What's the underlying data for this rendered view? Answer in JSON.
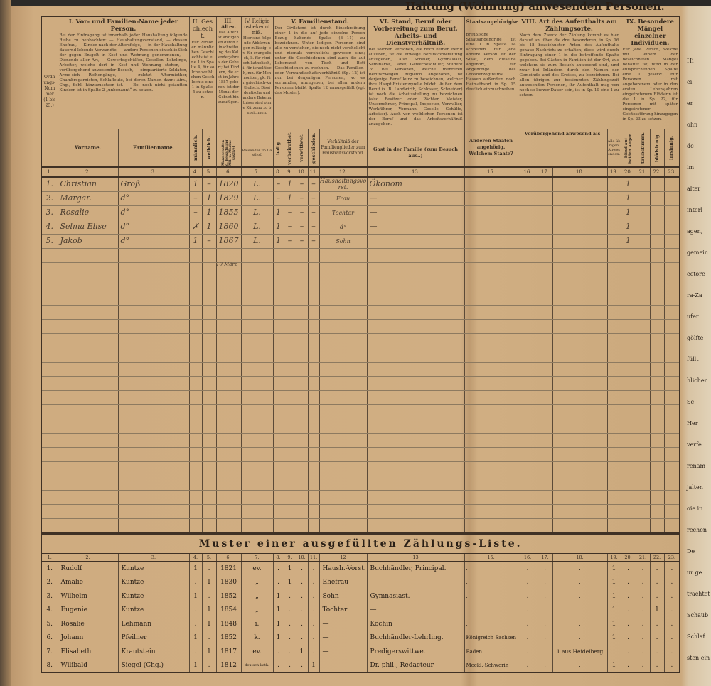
{
  "form": {
    "title_fragment": "Haltung (Wohnung) anwesenden Personen.",
    "headers": {
      "ordnungs_nummer": "Ordnungs-Nummer (1 bis 25.)",
      "I_title": "I. Vor- und Familien-Name jeder Person.",
      "I_desc": "Bei der Eintragung ist innerhalb jeder Haushaltung folgende Reihe zu beobachten: — Haushaltungsvorstand, — dessen Ehefrau, — Kinder nach der Altersfolge, — in der Haushaltung dauernd lebende Verwandte, — andere Personen einschließlich der gegen Entgelt in Kost und Wohnung genommenen, — Dienende aller Art, — Gewerbsgehülfen, Gesellen, Lehrlinge, Arbeiter, welche dort in Kost und Wohnung stehen, — vorübergehend anwesender Besuch, — einquartierte Soldaten, Arme-sich Reihengänge, — zuletzt Aftermiether, Chambregarnisten, Schlafleute, bei deren Namen dann: Afm., Chg., Schl. hinzuzusetzen ist. — Bei noch nicht getauften Kindern ist in Spalte 2 „unbenannt“ zu setzen.",
      "II_title": "II. Geschlecht.",
      "II_desc": "Für Personen männlichen Geschlechts ist eine 1 in Spalte 4, für solche weiblichen Geschlechts eine 1 in Spalte 5 zu setzen.",
      "III_title": "III. Alter.",
      "III_desc": "Das Alter ist anzugeben durch Einschreibung des Kalenderjahres der Geburt; bei Kindern, die erst im Jahre 1887 geboren, ist der Monat der Geburt hinzuzufügen.",
      "IV_title": "IV. Religionsbekenntniß.",
      "IV_desc": "Hier sind folgende Abkürzungen zulässig: ev. für evangelisch, k. für römisch-katholisch, i. für israelitisch, mn. für Mennoniten, gk. für griechisch-katholisch. Dissidentische und andere Bekenntnisse sind ohne Kürzung zu bezeichnen.",
      "V_title": "V. Familienstand.",
      "V_desc": "Der Civilstand ist durch Einschreibung einer 1 in die auf jede einzelne Person Bezug habende Spalte (8—11) zu bezeichnen. Unter ledigen Personen sind alle zu verstehen, die noch nicht verehelicht und niemals verehelicht gewesen sind; unter die Geschiedenen sind auch die auf Lebenszeit von Tisch und Bett Geschiedenen zu rechnen. — Das Familien- oder Verwandtschaftsverhältniß (Sp. 12) ist nur bei denjenigen Personen, wo es vorhanden, anzugeben; bei allen andern Personen bleibt Spalte 12 unausgefüllt (vgl. das Muster).",
      "VI_title": "VI. Stand, Beruf oder Vorbereitung zum Beruf, Arbeits- und Dienstverhältniß.",
      "VI_desc": "Bei solchen Personen, die noch keinen Beruf ausüben, ist die etwaige Berufsvorbereitung anzugeben, also Schüler, Gymnasiast, Seminarist, Cadet, Gewerbeschüler, Student 2c. Bei Personen, welche mehreren Berufszweigen zugleich angehören, ist derjenige Beruf kurz zu bezeichnen, welcher ihre Haupt-Existenzquelle bildet. Außer dem Beruf (z. B. Landwirth, Schlosser, Schneider) ist noch die Arbeitsstellung zu bezeichnen (also Besitzer oder Pächter, Meister, Unternehmer, Principal, Inspector, Verwalter, Werkführer, Vormann, Geselle, Gehülfe, Arbeiter). Auch von weiblichen Personen ist der Beruf und das Arbeitsverhältniß anzugeben.",
      "VII_title": "Staatsangehörigkeit.",
      "VII_desc": "preußische Staatsangehörige ist eine 1 in Spalte 14 schreiben. Für jede andere Person ist der Staat, dem dieselbe angehört, für Angehörige des Großherzogthums Hessen außerdem noch Heimathsort in Sp. 15 deutlich einzuschreiben.",
      "VIII_title": "VIII. Art des Aufenthalts am Zählungsorte.",
      "VIII_desc": "Nach dem Zweck der Zählung kommt es hier darauf an, über die drei besonderen, in Sp. 16 bis 18 bezeichneten Arten des Aufenthalts genaue Nachricht zu erhalten; diese wird durch Eintragung einer 1 in die betreffende Spalte gegeben. Bei Gästen in Familien ist der Ort, aus welchem sie zum Besuch anwesend sind, und zwar bei Inländern durch den Namen der Gemeinde und des Kreises, zu bezeichnen. Bei allen übrigen zur bestimmten Zählungszeit anwesenden Personen, ihr Aufenthalt mag von noch so kurzer Dauer sein, ist in Sp. 19 eine 1 zu setzen.",
      "IX_title": "IX. Besondere Mängel einzelner Individuen.",
      "IX_desc": "Für jede Person, welche mit einem der bezeichneten Mängel behaftet ist, wird in der entsprechenden Spalte eine 1 gesetzt. Für Personen mit angeborenem oder in den ersten Lebensjahren eingetretenem Blödsinn ist die 1 in Sp. 22, für Personen mit später eingetretener Geistesstörung hinzugegen in Sp. 23 zu setzen."
    },
    "subheaders": {
      "vorname": "Vorname.",
      "familienname": "Familienname.",
      "maennlich": "männlich.",
      "weiblich": "weiblich.",
      "ledig": "ledig.",
      "verheirathet": "verheirathet.",
      "verwittwet": "verwittwet.",
      "geschieden": "geschieden.",
      "verhaeltniss": "Verhältniß der Familienglieder zum Haushaltsvorstand.",
      "anderen_staaten": "Anderen Staaten angehörig. Welchem Staate?",
      "voruebergehend": "Vorübergehend anwesend als",
      "c16": "Mannschaften d. Bewaffnung Mil. u. Marine (aktive)",
      "c17": "Reisender im Gasthof.",
      "c18": "Gast in der Familie (zum Besuch aus..)",
      "c19": "Alle übrigen Anwesenden.",
      "c20": "blind auf beiden Augen.",
      "c21": "taubstumm.",
      "c22": "blödsinnig.",
      "c23": "irrsinnig."
    },
    "column_numbers": [
      "1.",
      "2.",
      "3.",
      "4.",
      "5.",
      "6.",
      "7.",
      "8.",
      "9.",
      "10.",
      "11.",
      "12.",
      "13.",
      "15.",
      "16.",
      "17.",
      "18.",
      "19.",
      "20.",
      "21.",
      "22.",
      "23."
    ],
    "handwritten_rows": [
      [
        "1.",
        "Christian",
        "Groß",
        "1",
        "–",
        "1820",
        "L.",
        "–",
        "1",
        "–",
        "–",
        "Haushaltungsvorst.",
        "Ökonom",
        "",
        "",
        "",
        "",
        "",
        "1",
        "",
        "",
        ""
      ],
      [
        "2.",
        "Margar.",
        "d°",
        "–",
        "1",
        "1829",
        "L.",
        "–",
        "1",
        "–",
        "–",
        "Frau",
        "—",
        "",
        "",
        "",
        "",
        "",
        "1",
        "",
        "",
        ""
      ],
      [
        "3.",
        "Rosalie",
        "d°",
        "–",
        "1",
        "1855",
        "L.",
        "1",
        "–",
        "–",
        "–",
        "Tochter",
        "—",
        "",
        "",
        "",
        "",
        "",
        "1",
        "",
        "",
        ""
      ],
      [
        "4.",
        "Selma Elise",
        "d°",
        "✗",
        "1",
        "1860",
        "L.",
        "1",
        "–",
        "–",
        "–",
        "d°",
        "—",
        "",
        "",
        "",
        "",
        "",
        "1",
        "",
        "",
        ""
      ],
      [
        "5.",
        "Jakob",
        "d°",
        "1",
        "–",
        "1867",
        "L.",
        "1",
        "–",
        "–",
        "–",
        "Sohn",
        "",
        "",
        "",
        "",
        "",
        "",
        "1",
        "",
        "",
        ""
      ]
    ],
    "birth_month_note": "10 März",
    "empty_row_count": 20
  },
  "sample": {
    "title": "Muster einer ausgefüllten Zählungs-Liste.",
    "column_numbers": [
      "1.",
      "2.",
      "3.",
      "4.",
      "5.",
      "6.",
      "7.",
      "8.",
      "9.",
      "10.",
      "11.",
      "12",
      "13",
      "15.",
      "16.",
      "17.",
      "18.",
      "19.",
      "20.",
      "21.",
      "22.",
      "23."
    ],
    "rows": [
      [
        "1.",
        "Rudolf",
        "Kuntze",
        "1",
        ".",
        "1821",
        "ev.",
        ".",
        "1",
        ".",
        ".",
        "Haush.-Vorst.",
        "Buchhändler, Principal.",
        ".",
        ".",
        ".",
        ".",
        "1",
        ".",
        ".",
        ".",
        "."
      ],
      [
        "2.",
        "Amalie",
        "Kuntze",
        ".",
        "1",
        "1830",
        "„",
        ".",
        "1",
        ".",
        ".",
        "Ehefrau",
        "—",
        ".",
        ".",
        ".",
        ".",
        "1",
        ".",
        ".",
        ".",
        "."
      ],
      [
        "3.",
        "Wilhelm",
        "Kuntze",
        "1",
        ".",
        "1852",
        "„",
        "1",
        ".",
        ".",
        ".",
        "Sohn",
        "Gymnasiast.",
        ".",
        ".",
        ".",
        ".",
        "1",
        ".",
        ".",
        ".",
        "."
      ],
      [
        "4.",
        "Eugenie",
        "Kuntze",
        ".",
        "1",
        "1854",
        "„",
        "1",
        ".",
        ".",
        ".",
        "Tochter",
        "—",
        ".",
        ".",
        ".",
        ".",
        "1",
        ".",
        ".",
        "1",
        "."
      ],
      [
        "5.",
        "Rosalie",
        "Lehmann",
        ".",
        "1",
        "1848",
        "i.",
        "1",
        ".",
        ".",
        ".",
        "—",
        "Köchin",
        ".",
        ".",
        ".",
        ".",
        "1",
        ".",
        ".",
        ".",
        "."
      ],
      [
        "6.",
        "Johann",
        "Pfeilner",
        "1",
        ".",
        "1852",
        "k.",
        "1",
        ".",
        ".",
        ".",
        "—",
        "Buchhändler-Lehrling.",
        "Königreich Sachsen",
        ".",
        ".",
        ".",
        "1",
        ".",
        ".",
        ".",
        "."
      ],
      [
        "7.",
        "Elisabeth",
        "Krautstein",
        ".",
        "1",
        "1817",
        "ev.",
        ".",
        ".",
        "1",
        ".",
        "—",
        "Predigerswittwe.",
        "Baden",
        ".",
        ".",
        "1 aus Heidelberg",
        ".",
        ".",
        ".",
        ".",
        "."
      ],
      [
        "8.",
        "Wilibald",
        "Siegel (Chg.)",
        "1",
        ".",
        "1812",
        "deutsch-kath.",
        ".",
        ".",
        ".",
        "1",
        "—",
        "Dr. phil., Redacteur",
        "Meckl.-Schwerin",
        ".",
        ".",
        ".",
        "1",
        ".",
        ".",
        ".",
        "."
      ]
    ]
  },
  "right_page_fragments": [
    "Hi",
    "ei",
    "er",
    "ohn",
    "de",
    "im",
    "alter",
    "interl",
    "agen,",
    "gemein",
    "ectore",
    "ra-Za",
    "ufer",
    "gölfte",
    "füllt",
    "hlichen",
    "Sc",
    "Her",
    "verfe",
    "renam",
    "jalten",
    "oie in",
    "rechen",
    "De",
    "ur ge",
    "trachtet",
    "Schaub",
    "Schlaf",
    "sten ein"
  ]
}
